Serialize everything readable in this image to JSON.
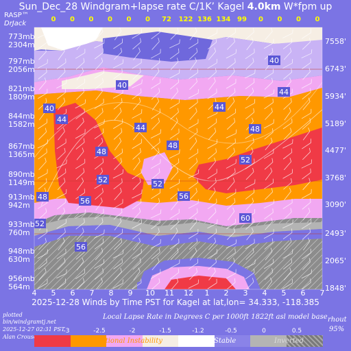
{
  "title": {
    "prefix": "Sun_Dec_28 Windgram+lapse rate C/1K’  Kagel ",
    "height": "4.0km",
    "suffix": "  W*fpm up"
  },
  "corner": {
    "top": "RASP™",
    "bottom": "DrJack"
  },
  "wstar_values": [
    "0",
    "0",
    "0",
    "0",
    "0",
    "0",
    "72",
    "122",
    "136",
    "134",
    "99",
    "0",
    "0",
    "0",
    "0"
  ],
  "left_levels": [
    {
      "mb": "773mb",
      "m": "2304m"
    },
    {
      "mb": "797mb",
      "m": "2056m"
    },
    {
      "mb": "821mb",
      "m": "1809m"
    },
    {
      "mb": "844mb",
      "m": "1582m"
    },
    {
      "mb": "867mb",
      "m": "1365m"
    },
    {
      "mb": "890mb",
      "m": "1149m"
    },
    {
      "mb": "913mb",
      "m": "942m"
    },
    {
      "mb": "933mb",
      "m": "760m"
    },
    {
      "mb": "948mb",
      "m": "630m"
    },
    {
      "mb": "956mb",
      "m": "564m"
    }
  ],
  "right_levels": [
    "7558'",
    "6743'",
    "5934'",
    "5189'",
    "4477'",
    "3768'",
    "3090'",
    "2493'",
    "2065'",
    "1848'"
  ],
  "x_ticks": [
    "4",
    "5",
    "6",
    "7",
    "8",
    "9",
    "10",
    "11",
    "12",
    "1",
    "2",
    "3",
    "4",
    "5",
    "6",
    "7"
  ],
  "x_label": "2025-12-28 Winds by Time PST for Kagel at lat,lon= 34.333, -118.385",
  "speed_labels": [
    "40",
    "40",
    "40",
    "44",
    "44",
    "44",
    "44",
    "48",
    "48",
    "48",
    "52",
    "52",
    "52",
    "56",
    "56",
    "60",
    "52",
    "48",
    "56"
  ],
  "footer_left": [
    "plotted",
    "bin/windgramtj.net",
    "2025-12-27 02:31 PST",
    "Alan Crouse"
  ],
  "footer_right": [
    "rhout",
    "95%"
  ],
  "legend": {
    "title": "Local Lapse Rate in Degrees C per 1000ft   1822ft asl model base",
    "values": [
      "-3",
      "-2.5",
      "-2",
      "-1.5",
      "-1.2",
      "-0.5",
      "0",
      "0.5"
    ],
    "categories": [
      "Unstable",
      "Conditional Instability",
      "Stable",
      "Inverted"
    ],
    "colors": [
      "#f03a46",
      "#ff9800",
      "#f2a8f2",
      "#f6eee4",
      "#ffffff",
      "#8a83e8",
      "#b4b4b4",
      "#7a7a7a"
    ]
  },
  "colors": {
    "background": "#7b74e4",
    "unstable": "#f03a46",
    "conditional": "#ff9800",
    "pink": "#f2a8f2",
    "lavender": "#c9b3f5",
    "cream": "#f6eee4",
    "stable": "#8a83e8",
    "inverted": "#8c8c8c",
    "wstar_text": "#ffff00"
  },
  "chart_data": {
    "type": "heatmap",
    "title": "Sun_Dec_28 Windgram+lapse rate C/1K’  Kagel 4.0km  W*fpm up",
    "xlabel": "2025-12-28 Winds by Time PST for Kagel at lat,lon= 34.333, -118.385",
    "x": [
      "4",
      "5",
      "6",
      "7",
      "8",
      "9",
      "10",
      "11",
      "12",
      "1",
      "2",
      "3",
      "4",
      "5",
      "6",
      "7"
    ],
    "y_pressure_mb": [
      773,
      797,
      821,
      844,
      867,
      890,
      913,
      933,
      948,
      956
    ],
    "y_altitude_m": [
      2304,
      2056,
      1809,
      1582,
      1365,
      1149,
      942,
      760,
      630,
      564
    ],
    "y_altitude_ft": [
      7558,
      6743,
      5934,
      5189,
      4477,
      3768,
      3090,
      2493,
      2065,
      1848
    ],
    "wstar_fpm": [
      0,
      0,
      0,
      0,
      0,
      0,
      72,
      122,
      136,
      134,
      99,
      0,
      0,
      0,
      0
    ],
    "lapse_rate_scale": [
      -3,
      -2.5,
      -2,
      -1.5,
      -1.2,
      -0.5,
      0,
      0.5
    ],
    "legend": [
      "Unstable",
      "Conditional Instability",
      "Stable",
      "Inverted"
    ]
  }
}
